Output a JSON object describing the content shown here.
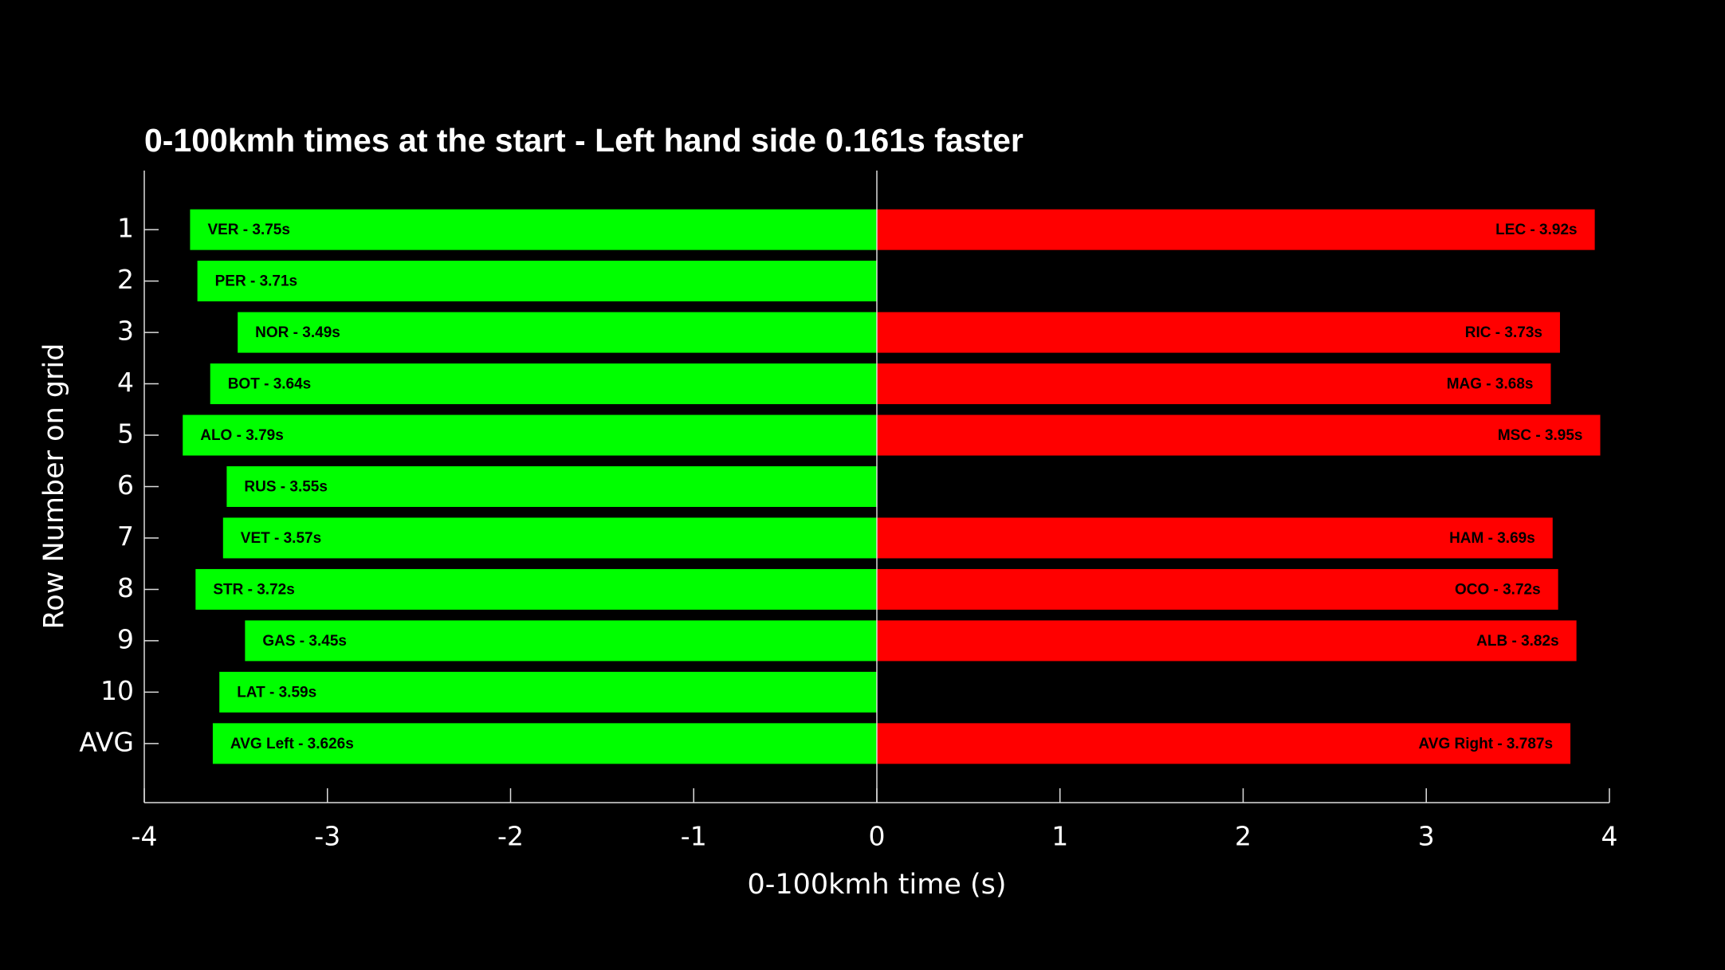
{
  "chart_data": {
    "type": "diverging-bar",
    "title": "0-100kmh times at the start - Left hand side 0.161s faster",
    "x_label": "0-100kmh time (s)",
    "y_label": "Row Number on grid",
    "categories": [
      "1",
      "2",
      "3",
      "4",
      "5",
      "6",
      "7",
      "8",
      "9",
      "10",
      "AVG"
    ],
    "xlim": [
      -4,
      4
    ],
    "xticks": [
      -4,
      -3,
      -2,
      -1,
      0,
      1,
      2,
      3,
      4
    ],
    "series": [
      {
        "color": "#00ff00",
        "values": [
          -3.75,
          -3.71,
          -3.49,
          -3.64,
          -3.79,
          -3.55,
          -3.57,
          -3.72,
          -3.45,
          -3.59,
          -3.626
        ],
        "value_labels": [
          "VER - 3.75s",
          "PER - 3.71s",
          "NOR - 3.49s",
          "BOT - 3.64s",
          "ALO - 3.79s",
          "RUS - 3.55s",
          "VET - 3.57s",
          "STR - 3.72s",
          "GAS - 3.45s",
          "LAT - 3.59s",
          "AVG Left - 3.626s"
        ]
      },
      {
        "color": "#ff0000",
        "values": [
          3.92,
          null,
          3.73,
          3.68,
          3.95,
          null,
          3.69,
          3.72,
          3.82,
          null,
          3.787
        ],
        "value_labels": [
          "LEC - 3.92s",
          null,
          "RIC - 3.73s",
          "MAG - 3.68s",
          "MSC - 3.95s",
          null,
          "HAM - 3.69s",
          "OCO - 3.72s",
          "ALB - 3.82s",
          null,
          "AVG Right - 3.787s"
        ]
      }
    ]
  }
}
